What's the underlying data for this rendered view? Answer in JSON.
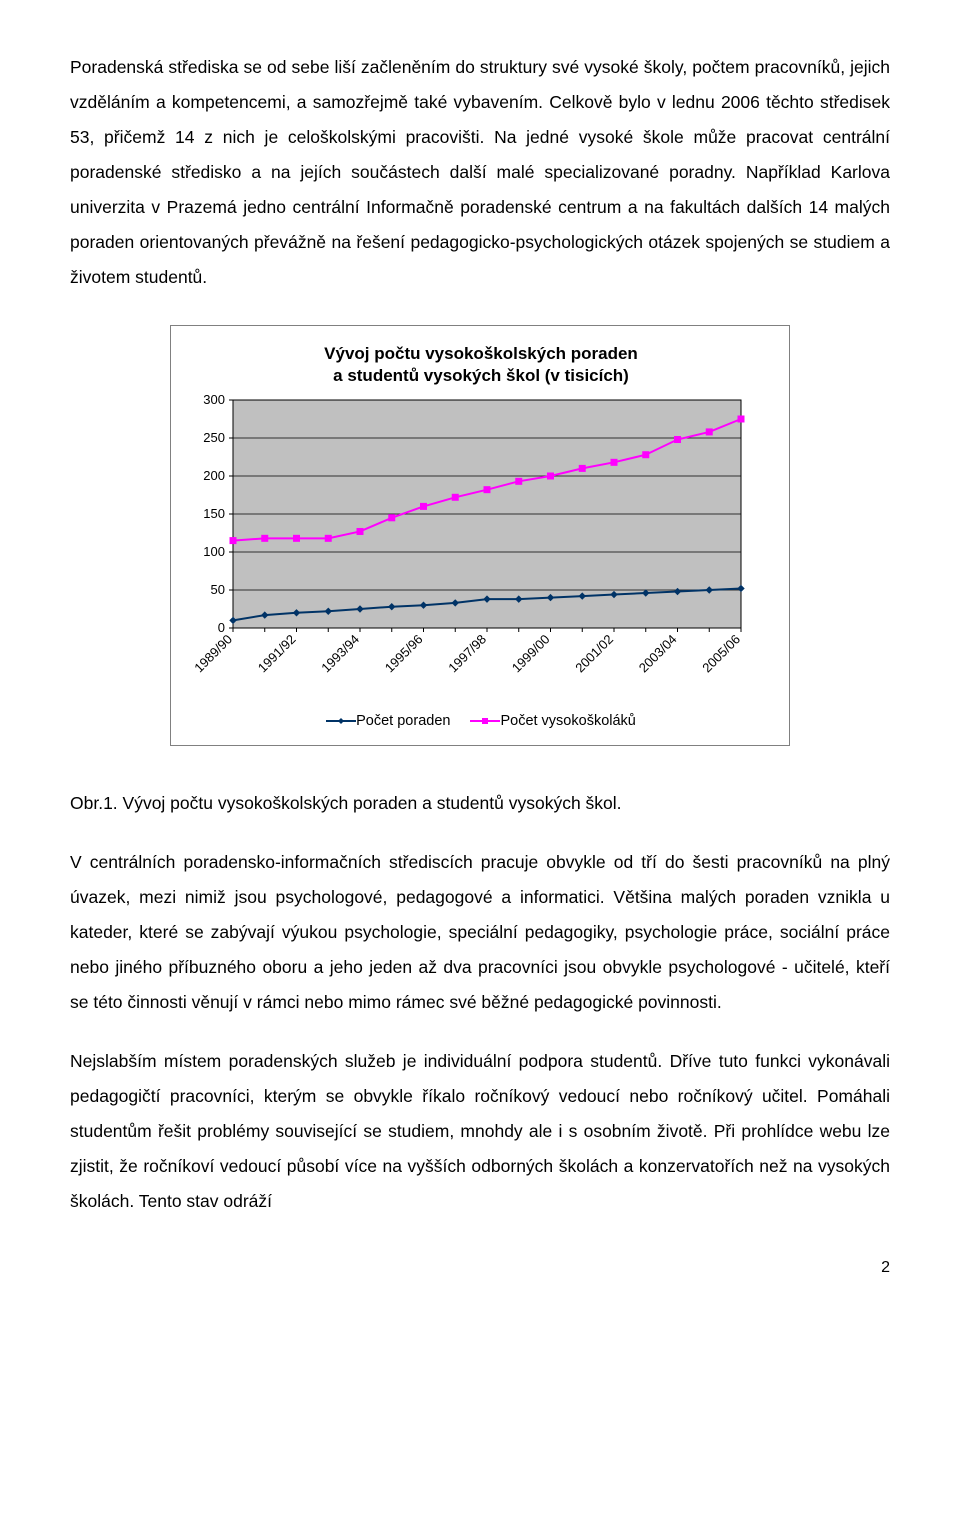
{
  "paragraphs": {
    "p1": "Poradenská střediska se od sebe liší začleněním do struktury své vysoké školy, počtem pracovníků, jejich vzděláním a kompetencemi, a samozřejmě také vybavením. Celkově bylo v lednu 2006 těchto středisek 53, přičemž 14 z nich je celoškolskými pracovišti. Na jedné vysoké škole může pracovat centrální poradenské středisko a na jejích součástech další malé specializované poradny. Například Karlova univerzita v Prazemá jedno centrální Informačně poradenské centrum a na fakultách dalších 14 malých poraden orientovaných převážně na řešení pedagogicko-psychologických otázek spojených se studiem a životem studentů.",
    "caption": "Obr.1. Vývoj počtu vysokoškolských poraden a studentů vysokých škol.",
    "p2": "V centrálních poradensko-informačních střediscích pracuje obvykle od tří do šesti pracovníků na plný úvazek, mezi nimiž jsou psychologové, pedagogové a informatici. Většina malých poraden vznikla u kateder, které se zabývají výukou psychologie, speciální pedagogiky, psychologie práce, sociální práce nebo jiného příbuzného oboru a jeho jeden až dva pracovníci jsou obvykle psychologové - učitelé, kteří se této činnosti věnují v rámci nebo mimo rámec své běžné pedagogické povinnosti.",
    "p3": "Nejslabším místem poradenských služeb je individuální podpora studentů. Dříve tuto funkci vykonávali pedagogičtí pracovníci, kterým se obvykle říkalo ročníkový vedoucí nebo ročníkový učitel. Pomáhali studentům řešit problémy související se studiem, mnohdy ale i s osobním životě. Při prohlídce webu lze zjistit, že ročníkoví vedoucí působí více na vyšších odborných školách a konzervatořích než na vysokých školách. Tento stav odráží"
  },
  "chart": {
    "type": "line",
    "title_line1": "Vývoj počtu vysokoškolských poraden",
    "title_line2": "a studentů vysokých škol (v tisicích)",
    "title_fontsize": 17,
    "x_labels": [
      "1989/90",
      "1991/92",
      "1993/94",
      "1995/96",
      "1997/98",
      "1999/00",
      "2001/02",
      "2003/04",
      "2005/06"
    ],
    "x_positions": [
      0,
      1,
      2,
      3,
      4,
      5,
      6,
      7,
      8,
      9,
      10,
      11,
      12,
      13,
      14,
      15,
      16
    ],
    "y_ticks": [
      0,
      50,
      100,
      150,
      200,
      250,
      300
    ],
    "ylim": [
      0,
      300
    ],
    "axis_fontsize": 13,
    "background_color": "#ffffff",
    "plot_area_color": "#c0c0c0",
    "grid_color": "#000000",
    "border_color": "#808080",
    "series": [
      {
        "name": "Počet poraden",
        "label": "Počet poraden",
        "color": "#003366",
        "marker": "diamond",
        "marker_size": 6,
        "line_width": 2,
        "values": [
          10,
          17,
          20,
          22,
          25,
          28,
          30,
          33,
          38,
          38,
          40,
          42,
          44,
          46,
          48,
          50,
          52
        ]
      },
      {
        "name": "Počet vysokoškoláků",
        "label": "Počet vysokoškoláků",
        "color": "#ff00ff",
        "marker": "square",
        "marker_size": 6,
        "line_width": 2,
        "values": [
          115,
          118,
          118,
          118,
          127,
          145,
          160,
          172,
          182,
          193,
          200,
          210,
          218,
          228,
          248,
          258,
          275
        ]
      }
    ]
  },
  "page_number": "2"
}
